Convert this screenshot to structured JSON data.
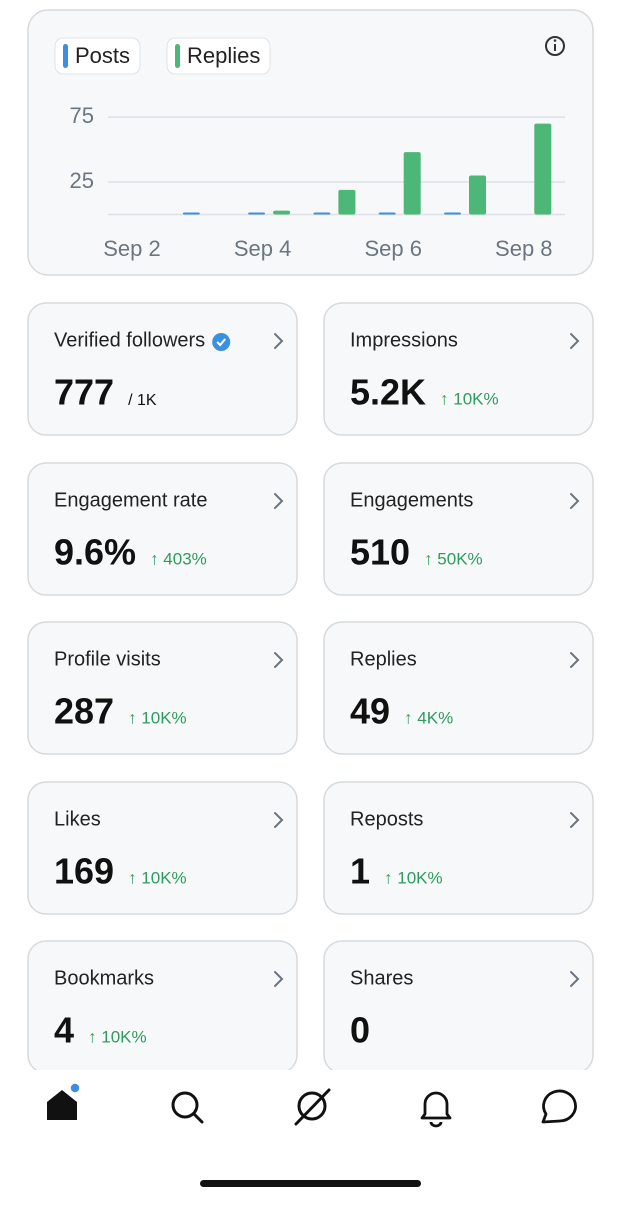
{
  "chart_data": {
    "type": "bar",
    "categories": [
      "Sep 2",
      null,
      "Sep 4",
      null,
      "Sep 6",
      null,
      "Sep 8"
    ],
    "series": [
      {
        "name": "Posts",
        "color": "#3b8fe0",
        "values": [
          0,
          1,
          1,
          1,
          1,
          1,
          0
        ]
      },
      {
        "name": "Replies",
        "color": "#4cb777",
        "values": [
          0,
          0,
          3,
          19,
          48,
          30,
          70
        ]
      }
    ],
    "ylim": [
      0,
      82
    ],
    "yticks": [
      25,
      75
    ],
    "grid": true
  },
  "cards": [
    {
      "label": "Verified followers",
      "value": "777",
      "suffix": "/ 1K"
    },
    {
      "label": "Impressions",
      "value": "5.2K",
      "change": "↑ 10K%"
    },
    {
      "label": "Engagement rate",
      "value": "9.6%",
      "change": "↑ 403%"
    },
    {
      "label": "Engagements",
      "value": "510",
      "change": "↑ 50K%"
    },
    {
      "label": "Profile visits",
      "value": "287",
      "change": "↑ 10K%"
    },
    {
      "label": "Replies",
      "value": "49",
      "change": "↑ 4K%"
    },
    {
      "label": "Likes",
      "value": "169",
      "change": "↑ 10K%"
    },
    {
      "label": "Reposts",
      "value": "1",
      "change": "↑ 10K%"
    },
    {
      "label": "Bookmarks",
      "value": "4",
      "change": "↑ 10K%"
    },
    {
      "label": "Shares",
      "value": "0"
    }
  ]
}
